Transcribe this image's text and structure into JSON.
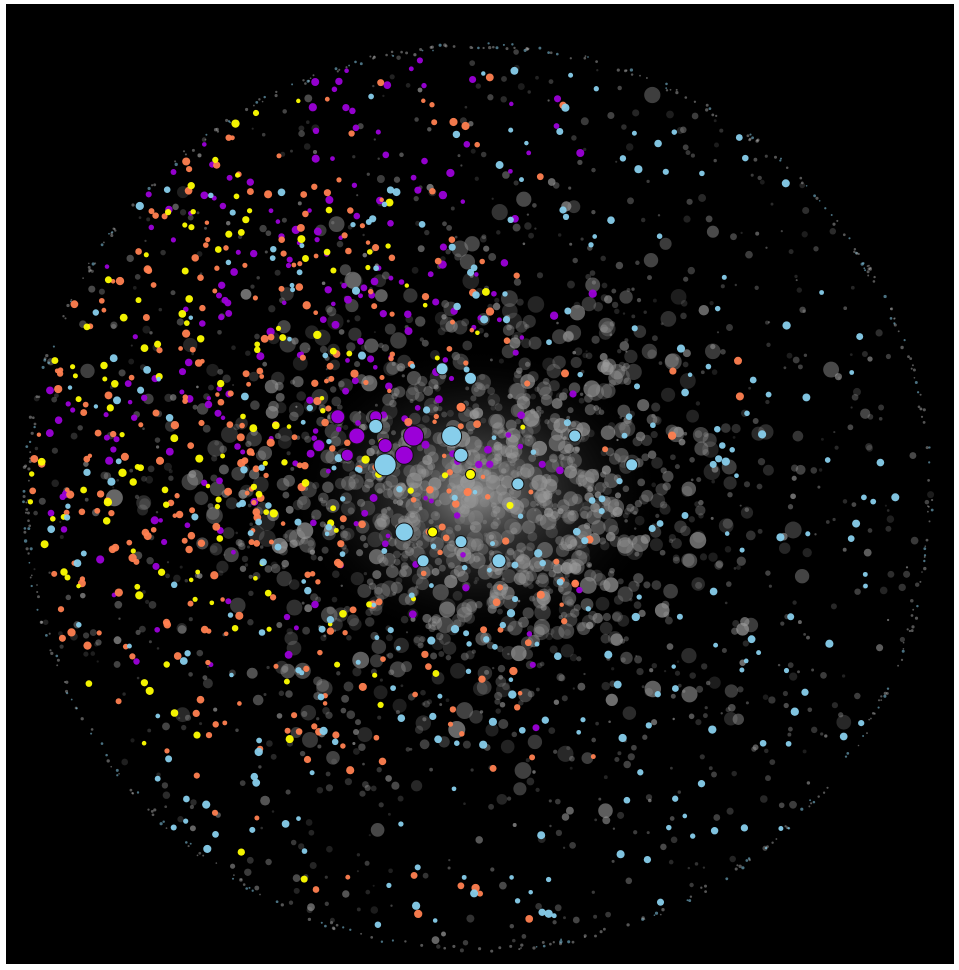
{
  "chart_data": {
    "type": "scatter",
    "title": "",
    "xlabel": "",
    "ylabel": "",
    "background": "#000000",
    "shape": "circle",
    "legend": "none",
    "grid": false,
    "series": [
      {
        "color": "#9a9a9a",
        "role": "background-cloud",
        "count": 2600
      },
      {
        "color": "#9b00d8",
        "count": 220
      },
      {
        "color": "#ff7f50",
        "count": 330
      },
      {
        "color": "#ffff00",
        "count": 140
      },
      {
        "color": "#87ceeb",
        "count": 300
      }
    ]
  }
}
